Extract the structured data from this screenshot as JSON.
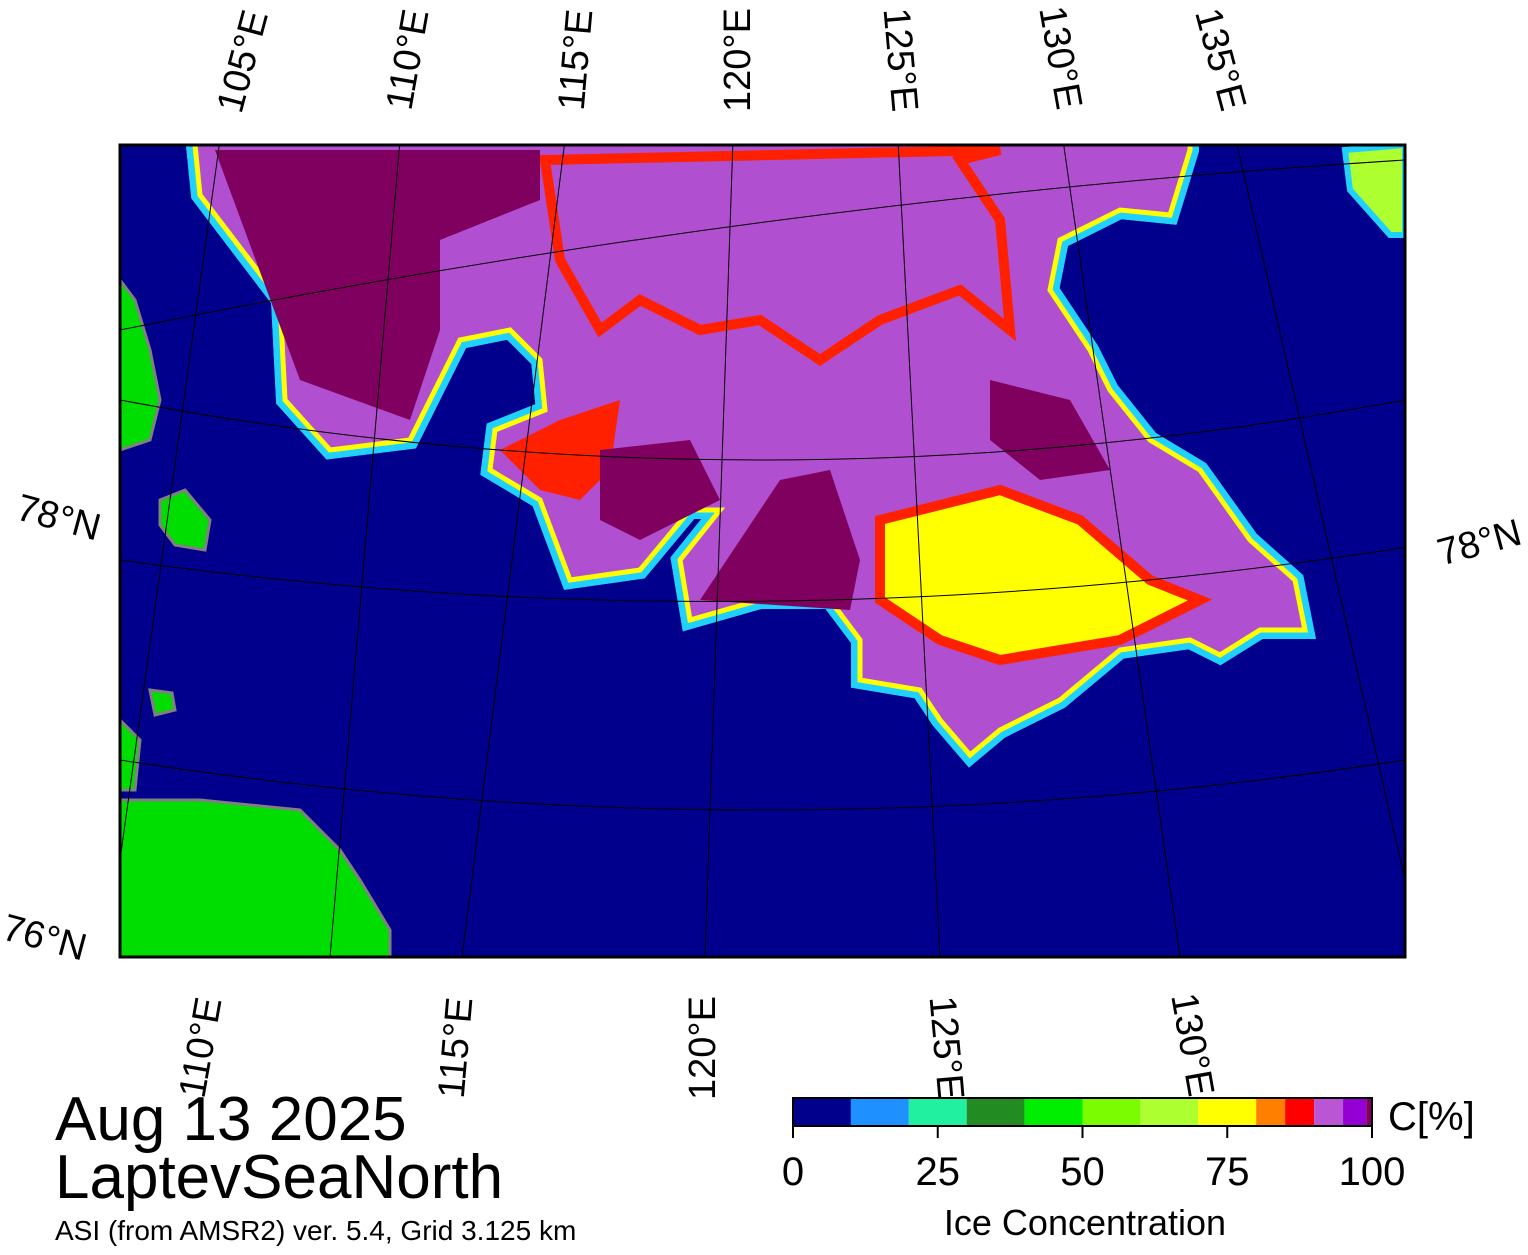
{
  "map": {
    "top_longitude_labels": [
      "105°E",
      "110°E",
      "115°E",
      "120°E",
      "125°E",
      "130°E",
      "135°E"
    ],
    "bottom_longitude_labels": [
      "110°E",
      "115°E",
      "120°E",
      "125°E",
      "130°E"
    ],
    "left_latitude_labels": [
      "78°N",
      "76°N"
    ],
    "right_latitude_labels": [
      "78°N"
    ]
  },
  "caption": {
    "date": "Aug 13 2025",
    "region": "LaptevSeaNorth",
    "source": "ASI (from AMSR2) ver. 5.4,  Grid 3.125 km"
  },
  "colorbar": {
    "unit_label": "C[%]",
    "title": "Ice Concentration",
    "lim": [
      0,
      100
    ],
    "ticks": [
      0,
      25,
      50,
      75,
      100
    ],
    "bounds": [
      0,
      10,
      20,
      30,
      40,
      50,
      60,
      70,
      80,
      85,
      90,
      95,
      99,
      100
    ],
    "colors": [
      "#00008c",
      "#1e90ff",
      "#20f0a0",
      "#228b22",
      "#00ee00",
      "#7cfc00",
      "#adff2f",
      "#ffff00",
      "#ff8000",
      "#ff0000",
      "#ba55d3",
      "#9400d3",
      "#800060"
    ]
  }
}
